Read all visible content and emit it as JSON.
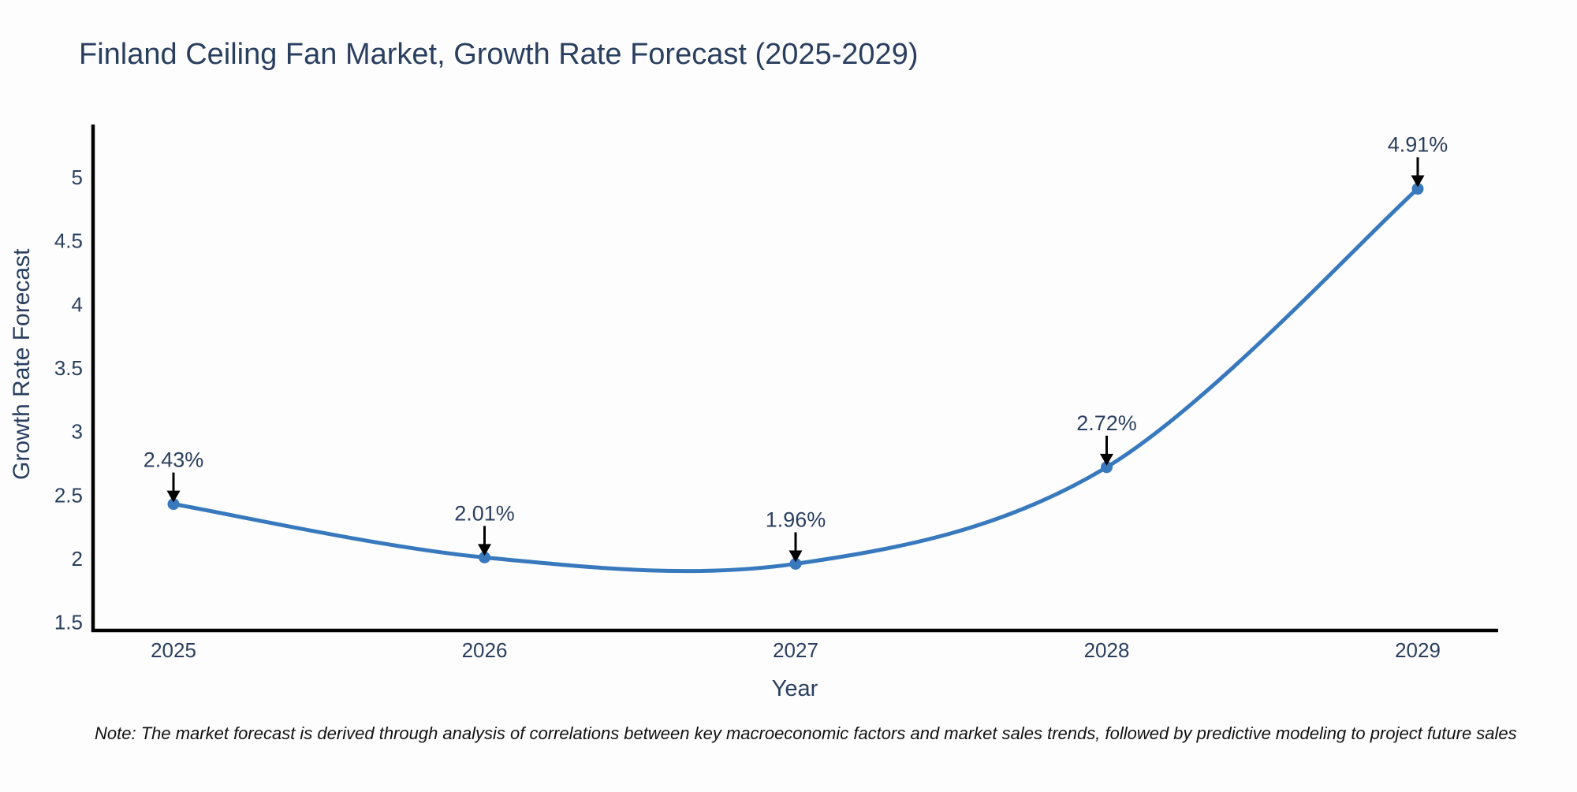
{
  "title": "Finland Ceiling Fan Market, Growth Rate Forecast (2025-2029)",
  "note": "Note: The market forecast is derived through analysis of correlations between key macroeconomic factors and market sales trends, followed by predictive modeling to project future sales",
  "colors": {
    "line": "#3879bd",
    "marker": "#3879bd",
    "text": "#2a3f5f",
    "axis": "#000000",
    "arrow": "#000000",
    "background": "#fdfdfd"
  },
  "chart_data": {
    "type": "line",
    "title": "Finland Ceiling Fan Market, Growth Rate Forecast (2025-2029)",
    "xlabel": "Year",
    "ylabel": "Growth Rate Forecast",
    "categories": [
      2025,
      2026,
      2027,
      2028,
      2029
    ],
    "values": [
      2.43,
      2.01,
      1.96,
      2.72,
      4.91
    ],
    "point_labels": [
      "2.43%",
      "2.01%",
      "1.96%",
      "2.72%",
      "4.91%"
    ],
    "yticks": [
      1.5,
      2,
      2.5,
      3,
      3.5,
      4,
      4.5,
      5
    ],
    "ylim": [
      1.44,
      5.42
    ],
    "line_shape": "spline",
    "grid": false,
    "legend": false,
    "annotations_arrow": "down"
  }
}
